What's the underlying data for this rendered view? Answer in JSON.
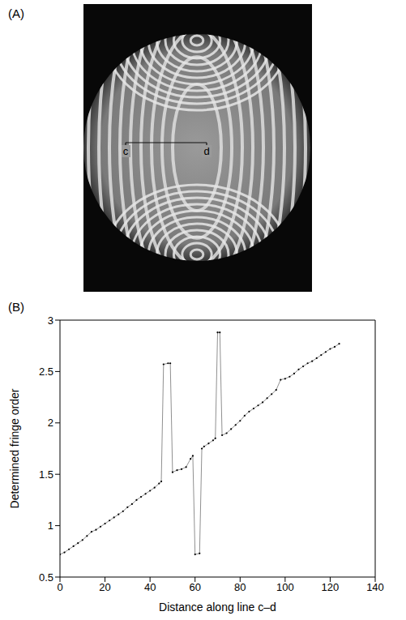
{
  "figure": {
    "panel_labels": [
      "(A)",
      "(B)"
    ],
    "image_line_labels": [
      "c",
      "d"
    ]
  },
  "chart_data": {
    "type": "line",
    "x_label": "Distance along line c–d",
    "y_label": "Determined fringe order",
    "x": [
      0,
      2,
      4,
      6,
      8,
      10,
      12,
      14,
      16,
      18,
      20,
      22,
      24,
      26,
      28,
      30,
      32,
      34,
      36,
      38,
      40,
      42,
      44,
      45,
      46,
      48,
      49,
      50,
      52,
      54,
      56,
      58,
      59,
      60,
      62,
      63,
      64,
      66,
      68,
      69,
      70,
      71,
      72,
      74,
      76,
      78,
      80,
      82,
      84,
      86,
      88,
      90,
      92,
      94,
      96,
      98,
      100,
      102,
      104,
      106,
      108,
      110,
      112,
      114,
      116,
      118,
      120,
      122,
      124
    ],
    "values": [
      0.72,
      0.74,
      0.77,
      0.8,
      0.83,
      0.86,
      0.9,
      0.94,
      0.96,
      0.99,
      1.02,
      1.05,
      1.08,
      1.11,
      1.14,
      1.18,
      1.21,
      1.25,
      1.28,
      1.31,
      1.34,
      1.37,
      1.41,
      1.43,
      2.57,
      2.58,
      2.58,
      1.52,
      1.54,
      1.55,
      1.57,
      1.65,
      1.68,
      0.72,
      0.73,
      1.75,
      1.77,
      1.8,
      1.83,
      1.85,
      2.88,
      2.88,
      1.88,
      1.9,
      1.94,
      1.98,
      2.02,
      2.07,
      2.11,
      2.14,
      2.17,
      2.2,
      2.24,
      2.28,
      2.32,
      2.42,
      2.43,
      2.45,
      2.48,
      2.52,
      2.55,
      2.58,
      2.6,
      2.63,
      2.66,
      2.69,
      2.72,
      2.74,
      2.77
    ],
    "color": "#444444",
    "marker": "dot",
    "xlim": [
      0,
      140
    ],
    "xticks": [
      0,
      20,
      40,
      60,
      80,
      100,
      120,
      140
    ],
    "ylim": [
      0.5,
      3
    ],
    "yticks": [
      0.5,
      1,
      1.5,
      2,
      2.5,
      3
    ],
    "grid": false
  }
}
